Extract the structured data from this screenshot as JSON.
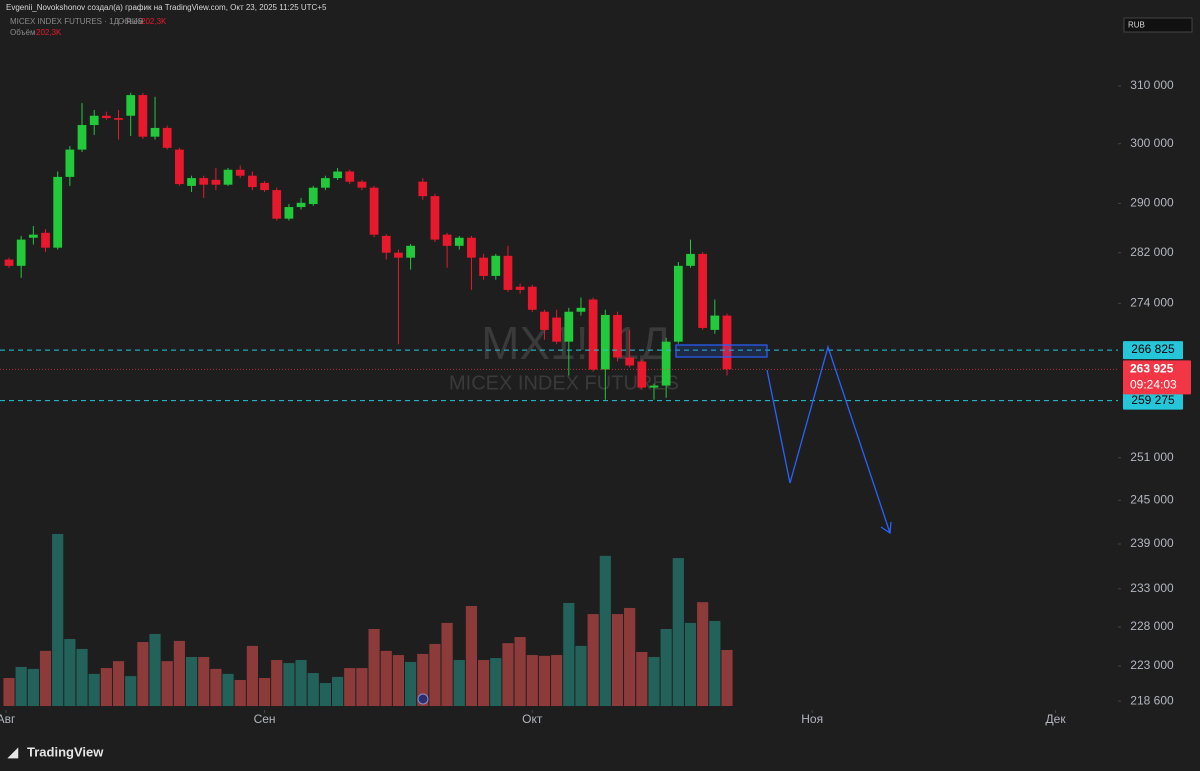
{
  "chart_data": {
    "type": "candlestick",
    "header": {
      "author_line": "Evgenii_Novokshonov создал(а) график на TradingView.com, Окт 23, 2025 11:25 UTC+5",
      "symbol_line": "MICEX INDEX FUTURES · 1Д · RUS",
      "volume_label": "Объём",
      "volume_value": "202,3K"
    },
    "watermark": {
      "symbol": "MX1!, 1Д",
      "name": "MICEX INDEX FUTURES"
    },
    "currency": "RUB",
    "logo": "TradingView",
    "log_scale": true,
    "up_color": "#22c93b",
    "down_color": "#e8192c",
    "volume_up_color": "#22625b",
    "volume_down_color": "#8c3b3a",
    "xlim": [
      -0.74,
      91.13
    ],
    "xticks": [
      {
        "value": -0.25,
        "label": "Авг"
      },
      {
        "value": 21,
        "label": "Сен"
      },
      {
        "value": 43,
        "label": "Окт"
      },
      {
        "value": 66,
        "label": "Ноя"
      },
      {
        "value": 86,
        "label": "Дек"
      }
    ],
    "ylim": [
      217500,
      322200
    ],
    "yticks": [
      {
        "value": 310000,
        "label": "310 000"
      },
      {
        "value": 300000,
        "label": "300 000"
      },
      {
        "value": 290000,
        "label": "290 000"
      },
      {
        "value": 282000,
        "label": "282 000"
      },
      {
        "value": 274000,
        "label": "274 000"
      },
      {
        "value": 251000,
        "label": "251 000"
      },
      {
        "value": 245000,
        "label": "245 000"
      },
      {
        "value": 239000,
        "label": "239 000"
      },
      {
        "value": 233000,
        "label": "233 000"
      },
      {
        "value": 228000,
        "label": "228 000"
      },
      {
        "value": 223000,
        "label": "223 000"
      },
      {
        "value": 218600,
        "label": "218 600"
      }
    ],
    "levels": [
      {
        "value": 266825,
        "label": "266 825",
        "color": "#26c6da"
      },
      {
        "value": 259275,
        "label": "259 275",
        "color": "#26c6da"
      }
    ],
    "last_price": {
      "value": 263925,
      "label": "263 925",
      "countdown": "09:24:03",
      "color": "#f23645"
    },
    "open": [
      280900,
      279900,
      284400,
      285200,
      282800,
      294400,
      299000,
      303200,
      304800,
      304400,
      304800,
      308400,
      301200,
      302700,
      299000,
      292900,
      294200,
      293900,
      293100,
      295600,
      294600,
      293400,
      292200,
      287500,
      289400,
      289900,
      292600,
      294200,
      295300,
      293600,
      292600,
      284700,
      282000,
      281200,
      293600,
      291200,
      284900,
      283100,
      284400,
      281200,
      278300,
      281500,
      276600,
      276600,
      272700,
      271800,
      268100,
      272700,
      274600,
      263900,
      272200,
      265700,
      265100,
      261200,
      261500,
      268100,
      279900,
      281800,
      269900,
      272100
    ],
    "high": [
      281200,
      284700,
      286300,
      285800,
      295300,
      299600,
      307000,
      305800,
      305500,
      305800,
      308800,
      308800,
      308100,
      303100,
      299300,
      294600,
      294600,
      295900,
      295900,
      296300,
      295300,
      293700,
      292600,
      289900,
      290900,
      292900,
      294600,
      295900,
      295600,
      293900,
      292900,
      285000,
      282500,
      283400,
      294200,
      291600,
      285200,
      284700,
      284700,
      281800,
      281800,
      283100,
      277100,
      276900,
      273000,
      273000,
      273300,
      274900,
      274900,
      273000,
      272700,
      269900,
      265400,
      261800,
      268700,
      280500,
      284100,
      282100,
      274600,
      272400
    ],
    "low": [
      279600,
      278000,
      283300,
      282100,
      282500,
      292900,
      298600,
      301500,
      304100,
      300700,
      301300,
      300800,
      300700,
      299000,
      292900,
      291900,
      290900,
      292200,
      292900,
      294200,
      292200,
      291900,
      287200,
      287200,
      289000,
      289600,
      292200,
      293900,
      293200,
      292200,
      284500,
      280900,
      267700,
      279300,
      290600,
      283700,
      279600,
      282500,
      276100,
      277700,
      277700,
      275800,
      275500,
      272700,
      268400,
      267700,
      263000,
      272100,
      263600,
      259400,
      265100,
      264200,
      260900,
      259400,
      259700,
      267800,
      279600,
      269900,
      269300,
      263000
    ],
    "close": [
      279900,
      284100,
      284900,
      282800,
      294400,
      299000,
      303200,
      304800,
      304400,
      304100,
      308400,
      301200,
      302700,
      299300,
      293200,
      294200,
      293100,
      293100,
      295600,
      294600,
      292700,
      292200,
      287500,
      289400,
      290100,
      292600,
      294200,
      295300,
      293600,
      292600,
      284900,
      282000,
      281200,
      283100,
      291200,
      284100,
      283100,
      284400,
      281200,
      278300,
      281500,
      276100,
      276100,
      273000,
      269900,
      268100,
      272700,
      273300,
      263900,
      272200,
      265700,
      264500,
      261200,
      261500,
      268100,
      279900,
      281800,
      270200,
      272100,
      263925
    ],
    "volume": [
      101,
      141,
      134,
      199,
      621,
      242,
      206,
      116,
      137,
      162,
      108,
      231,
      260,
      162,
      235,
      177,
      177,
      134,
      116,
      94,
      217,
      101,
      166,
      155,
      166,
      119,
      83,
      105,
      137,
      137,
      278,
      199,
      184,
      159,
      188,
      224,
      300,
      166,
      361,
      166,
      173,
      227,
      249,
      184,
      181,
      184,
      372,
      217,
      332,
      542,
      332,
      354,
      195,
      177,
      278,
      534,
      300,
      375,
      307,
      202.3
    ]
  }
}
